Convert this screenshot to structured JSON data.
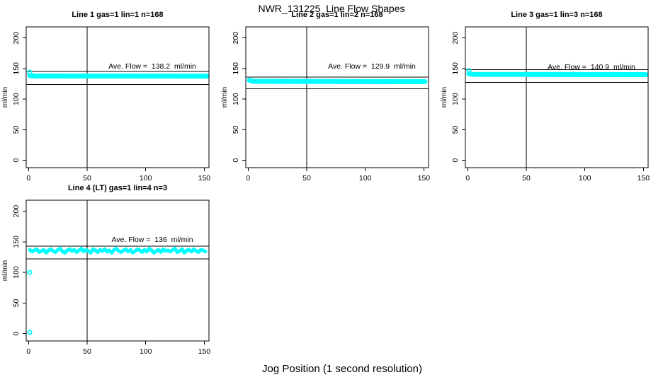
{
  "header": {
    "title": "NWR_131225  Line Flow Shapes"
  },
  "footer": {
    "xlabel": "Jog Position (1 second resolution)"
  },
  "colors": {
    "data": "#00ffff",
    "axis": "#000000"
  },
  "chart_data": [
    {
      "type": "scatter",
      "title": "Line 1 gas=1 lin=1 n=168",
      "annotation": "Ave. Flow =  138.2  ml/min",
      "ave_flow_ml_min": 138.2,
      "n": 168,
      "ylabel": "ml/min",
      "xticks": [
        0,
        50,
        100,
        150
      ],
      "yticks": [
        0,
        50,
        100,
        150,
        200
      ],
      "xlim": [
        -2,
        154
      ],
      "ylim": [
        -12,
        218
      ],
      "vline": 50,
      "hlines": [
        145,
        124
      ],
      "band": [
        [
          1,
          138.5
        ],
        [
          4,
          137.8
        ],
        [
          152,
          137.5
        ]
      ],
      "rings": [
        [
          1,
          144
        ]
      ]
    },
    {
      "type": "scatter",
      "title": "Line 2 gas=1 lin=2 n=168",
      "annotation": "Ave. Flow =  129.9  ml/min",
      "ave_flow_ml_min": 129.9,
      "n": 168,
      "ylabel": "ml/min",
      "xticks": [
        0,
        50,
        100,
        150
      ],
      "yticks": [
        0,
        50,
        100,
        150,
        200
      ],
      "xlim": [
        -2,
        154
      ],
      "ylim": [
        -12,
        218
      ],
      "vline": 50,
      "hlines": [
        136,
        117
      ],
      "band": [
        [
          1,
          131
        ],
        [
          4,
          129
        ],
        [
          151,
          128.5
        ]
      ],
      "rings": []
    },
    {
      "type": "scatter",
      "title": "Line 3 gas=1 lin=3 n=168",
      "annotation": "Ave. Flow =  140.9  ml/min",
      "ave_flow_ml_min": 140.9,
      "n": 168,
      "ylabel": "ml/min",
      "xticks": [
        0,
        50,
        100,
        150
      ],
      "yticks": [
        0,
        50,
        100,
        150,
        200
      ],
      "xlim": [
        -2,
        154
      ],
      "ylim": [
        -12,
        218
      ],
      "vline": 50,
      "hlines": [
        148,
        127
      ],
      "band": [
        [
          1,
          141.5
        ],
        [
          4,
          140.5
        ],
        [
          152,
          140
        ]
      ],
      "rings": [
        [
          1,
          146.5
        ]
      ]
    },
    {
      "type": "scatter",
      "title": "Line 4 (LT) gas=1 lin=4 n=3",
      "annotation": "Ave. Flow =  136  ml/min",
      "ave_flow_ml_min": 136,
      "n": 3,
      "ylabel": "ml/min",
      "xticks": [
        0,
        50,
        100,
        150
      ],
      "yticks": [
        0,
        50,
        100,
        150,
        200
      ],
      "xlim": [
        -2,
        154
      ],
      "ylim": [
        -12,
        218
      ],
      "vline": 50,
      "hlines": [
        143,
        122
      ],
      "band": [
        [
          1,
          137
        ],
        [
          3,
          134
        ],
        [
          5,
          136
        ],
        [
          7,
          138
        ],
        [
          9,
          133
        ],
        [
          11,
          135
        ],
        [
          13,
          137
        ],
        [
          15,
          132
        ],
        [
          17,
          136
        ],
        [
          19,
          138
        ],
        [
          21,
          135
        ],
        [
          23,
          133
        ],
        [
          25,
          137
        ],
        [
          27,
          139
        ],
        [
          29,
          134
        ],
        [
          31,
          132
        ],
        [
          33,
          136
        ],
        [
          35,
          138
        ],
        [
          37,
          135
        ],
        [
          39,
          137
        ],
        [
          41,
          133
        ],
        [
          43,
          136
        ],
        [
          45,
          139
        ],
        [
          47,
          134
        ],
        [
          49,
          137
        ],
        [
          51,
          135
        ],
        [
          53,
          132
        ],
        [
          55,
          138
        ],
        [
          57,
          136
        ],
        [
          59,
          133
        ],
        [
          61,
          137
        ],
        [
          63,
          135
        ],
        [
          65,
          138
        ],
        [
          67,
          134
        ],
        [
          69,
          136
        ],
        [
          71,
          132
        ],
        [
          73,
          137
        ],
        [
          75,
          139
        ],
        [
          77,
          135
        ],
        [
          79,
          133
        ],
        [
          81,
          136
        ],
        [
          83,
          138
        ],
        [
          85,
          134
        ],
        [
          87,
          137
        ],
        [
          89,
          132
        ],
        [
          91,
          135
        ],
        [
          93,
          138
        ],
        [
          95,
          136
        ],
        [
          97,
          133
        ],
        [
          99,
          137
        ],
        [
          101,
          134
        ],
        [
          103,
          139
        ],
        [
          105,
          136
        ],
        [
          107,
          132
        ],
        [
          109,
          135
        ],
        [
          111,
          137
        ],
        [
          113,
          133
        ],
        [
          115,
          138
        ],
        [
          117,
          135
        ],
        [
          119,
          136
        ],
        [
          121,
          134
        ],
        [
          123,
          137
        ],
        [
          125,
          139
        ],
        [
          127,
          133
        ],
        [
          129,
          135
        ],
        [
          131,
          138
        ],
        [
          133,
          132
        ],
        [
          135,
          136
        ],
        [
          137,
          137
        ],
        [
          139,
          134
        ],
        [
          141,
          138
        ],
        [
          143,
          135
        ],
        [
          145,
          133
        ],
        [
          147,
          137
        ],
        [
          149,
          136
        ],
        [
          151,
          134
        ]
      ],
      "rings": [
        [
          1,
          100
        ],
        [
          1,
          2
        ]
      ]
    }
  ]
}
